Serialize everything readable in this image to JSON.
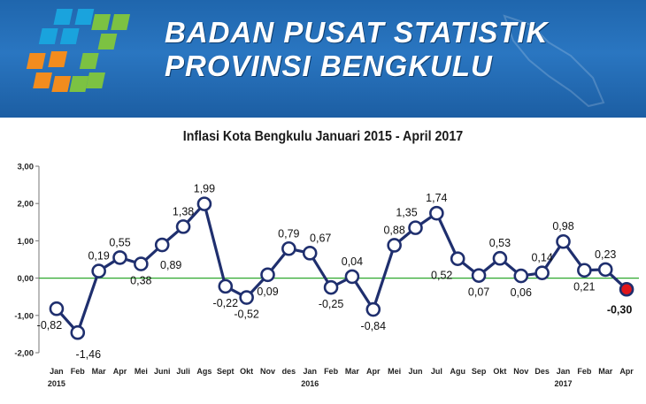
{
  "header": {
    "line1": "BADAN PUSAT STATISTIK",
    "line2": "PROVINSI BENGKULU"
  },
  "colors": {
    "header_bg": "#1f66ad",
    "line": "#1f2f6e",
    "marker_fill": "#ffffff",
    "last_marker": "#e0161b",
    "zero_line": "#2fa82f",
    "logo_orange": "#f28c1e",
    "logo_green": "#7cc242",
    "logo_blue": "#1aa3dd"
  },
  "chart_data": {
    "type": "line",
    "title": "Inflasi Kota Bengkulu Januari 2015 - April 2017",
    "xlabel": "",
    "ylabel": "",
    "ylim": [
      -2,
      3
    ],
    "yticks": [
      "3,00",
      "2,00",
      "1,00",
      "0,00",
      "-1,00",
      "-2,00"
    ],
    "grid": false,
    "categories": [
      "Jan",
      "Feb",
      "Mar",
      "Apr",
      "Mei",
      "Juni",
      "Juli",
      "Ags",
      "Sept",
      "Okt",
      "Nov",
      "des",
      "Jan",
      "Feb",
      "Mar",
      "Apr",
      "Mei",
      "Jun",
      "Jul",
      "Agu",
      "Sep",
      "Okt",
      "Nov",
      "Des",
      "Jan",
      "Feb",
      "Mar",
      "Apr"
    ],
    "years": [
      {
        "label": "2015",
        "index": 0
      },
      {
        "label": "2016",
        "index": 12
      },
      {
        "label": "2017",
        "index": 24
      }
    ],
    "values": [
      -0.82,
      -1.46,
      0.19,
      0.55,
      0.38,
      0.89,
      1.38,
      1.99,
      -0.22,
      -0.52,
      0.09,
      0.79,
      0.67,
      -0.25,
      0.04,
      -0.84,
      0.88,
      1.35,
      1.74,
      0.52,
      0.07,
      0.53,
      0.06,
      0.14,
      0.98,
      0.21,
      0.23,
      -0.3
    ],
    "data_labels": [
      "-0,82",
      "-1,46",
      "0,19",
      "0,55",
      "0,38",
      "0,89",
      "1,38",
      "1,99",
      "-0,22",
      "-0,52",
      "0,09",
      "0,79",
      "0,67",
      "-0,25",
      "0,04",
      "-0,84",
      "0,88",
      "1,35",
      "1,74",
      "0,52",
      "0,07",
      "0,53",
      "0,06",
      "0,14",
      "0,98",
      "0,21",
      "0,23",
      "-0,30"
    ]
  }
}
